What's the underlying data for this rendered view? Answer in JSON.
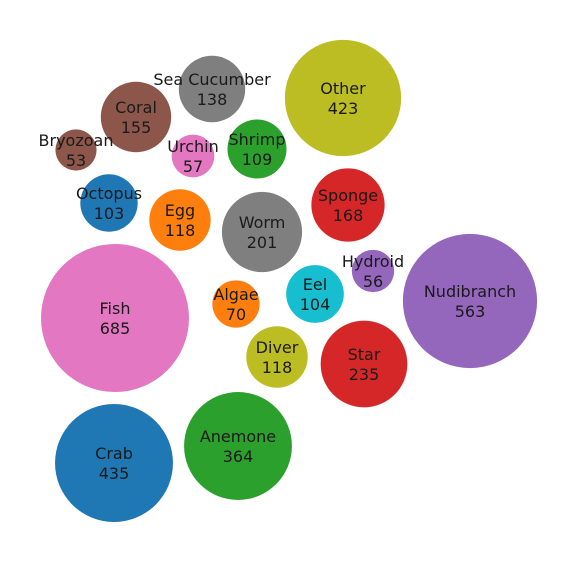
{
  "chart_data": {
    "type": "bubble",
    "title": "",
    "xlabel": "",
    "ylabel": "",
    "grid": false,
    "legend": "none",
    "series": [
      {
        "label": "Fish",
        "value": 685,
        "color": "#e377c2"
      },
      {
        "label": "Nudibranch",
        "value": 563,
        "color": "#9467bd"
      },
      {
        "label": "Crab",
        "value": 435,
        "color": "#1f77b4"
      },
      {
        "label": "Other",
        "value": 423,
        "color": "#bcbd22"
      },
      {
        "label": "Anemone",
        "value": 364,
        "color": "#2ca02c"
      },
      {
        "label": "Star",
        "value": 235,
        "color": "#d62728"
      },
      {
        "label": "Worm",
        "value": 201,
        "color": "#7f7f7f"
      },
      {
        "label": "Sponge",
        "value": 168,
        "color": "#d62728"
      },
      {
        "label": "Coral",
        "value": 155,
        "color": "#8c564b"
      },
      {
        "label": "Sea Cucumber",
        "value": 138,
        "color": "#7f7f7f"
      },
      {
        "label": "Egg",
        "value": 118,
        "color": "#ff7f0e"
      },
      {
        "label": "Diver",
        "value": 118,
        "color": "#bcbd22"
      },
      {
        "label": "Shrimp",
        "value": 109,
        "color": "#2ca02c"
      },
      {
        "label": "Eel",
        "value": 104,
        "color": "#17becf"
      },
      {
        "label": "Octopus",
        "value": 103,
        "color": "#1f77b4"
      },
      {
        "label": "Algae",
        "value": 70,
        "color": "#ff7f0e"
      },
      {
        "label": "Urchin",
        "value": 57,
        "color": "#e377c2"
      },
      {
        "label": "Hydroid",
        "value": 56,
        "color": "#9467bd"
      },
      {
        "label": "Bryozoan",
        "value": 53,
        "color": "#8c564b"
      }
    ]
  }
}
